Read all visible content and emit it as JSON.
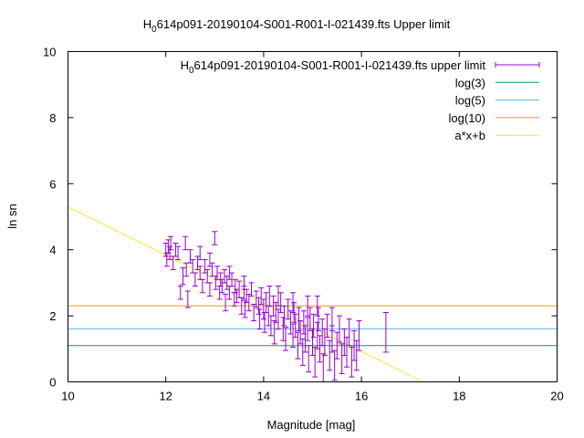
{
  "chart_data": {
    "type": "scatter",
    "title": "H",
    "title_sub": "0",
    "title_rest": "614p091-20190104-S001-R001-I-021439.fts Upper limit",
    "xlabel": "Magnitude [mag]",
    "ylabel": "ln sn",
    "xlim": [
      10,
      20
    ],
    "ylim": [
      0,
      10
    ],
    "xticks": [
      "10",
      "12",
      "14",
      "16",
      "18",
      "20"
    ],
    "yticks": [
      "0",
      "2",
      "4",
      "6",
      "8",
      "10"
    ],
    "grid": false,
    "legend_position": "top-right",
    "legend": [
      {
        "label": "H",
        "sub": "0",
        "rest": "614p091-20190104-S001-R001-I-021439.fts upper limit",
        "kind": "errorbars",
        "color": "#9400d3"
      },
      {
        "label": "log(3)",
        "kind": "line",
        "color": "#009e73"
      },
      {
        "label": "log(5)",
        "kind": "line",
        "color": "#56b4e9"
      },
      {
        "label": "log(10)",
        "kind": "line",
        "color": "#e69f00"
      },
      {
        "label": "a*x+b",
        "kind": "line",
        "color": "#f0e442"
      }
    ],
    "hlines": [
      {
        "name": "log(3)",
        "y": 1.0986,
        "color": "#009e73"
      },
      {
        "name": "log(5)",
        "y": 1.6094,
        "color": "#56b4e9"
      },
      {
        "name": "log(10)",
        "y": 2.3026,
        "color": "#e69f00"
      }
    ],
    "fit": {
      "name": "a*x+b",
      "a": -0.73,
      "b": 12.6,
      "color": "#f0e442"
    },
    "series": [
      {
        "name": "upper limit",
        "color": "#9400d3",
        "points": [
          [
            12.0,
            4.0,
            0.2
          ],
          [
            12.02,
            3.7,
            0.2
          ],
          [
            12.05,
            4.1,
            0.2
          ],
          [
            12.08,
            3.9,
            0.2
          ],
          [
            12.1,
            4.2,
            0.2
          ],
          [
            12.15,
            3.6,
            0.2
          ],
          [
            12.2,
            4.0,
            0.2
          ],
          [
            12.25,
            3.9,
            0.2
          ],
          [
            12.3,
            2.7,
            0.2
          ],
          [
            12.35,
            3.2,
            0.25
          ],
          [
            12.4,
            4.2,
            0.2
          ],
          [
            12.42,
            3.4,
            0.2
          ],
          [
            12.45,
            2.5,
            0.25
          ],
          [
            12.5,
            3.8,
            0.2
          ],
          [
            12.55,
            3.5,
            0.2
          ],
          [
            12.6,
            3.1,
            0.2
          ],
          [
            12.65,
            3.6,
            0.2
          ],
          [
            12.7,
            3.3,
            0.2
          ],
          [
            12.75,
            2.9,
            0.2
          ],
          [
            12.8,
            3.5,
            0.2
          ],
          [
            12.85,
            3.2,
            0.2
          ],
          [
            12.9,
            2.8,
            0.2
          ],
          [
            12.95,
            3.4,
            0.2
          ],
          [
            13.0,
            4.35,
            0.2
          ],
          [
            13.02,
            3.0,
            0.2
          ],
          [
            13.05,
            3.3,
            0.2
          ],
          [
            13.1,
            2.7,
            0.2
          ],
          [
            13.12,
            3.1,
            0.2
          ],
          [
            13.15,
            2.9,
            0.2
          ],
          [
            13.2,
            3.2,
            0.2
          ],
          [
            13.22,
            2.4,
            0.25
          ],
          [
            13.25,
            3.0,
            0.2
          ],
          [
            13.3,
            2.7,
            0.2
          ],
          [
            13.35,
            3.1,
            0.2
          ],
          [
            13.4,
            2.5,
            0.2
          ],
          [
            13.42,
            2.9,
            0.2
          ],
          [
            13.45,
            2.6,
            0.2
          ],
          [
            13.5,
            2.8,
            0.25
          ],
          [
            13.55,
            2.3,
            0.25
          ],
          [
            13.6,
            2.7,
            0.2
          ],
          [
            13.62,
            2.2,
            0.25
          ],
          [
            13.65,
            2.6,
            0.2
          ],
          [
            13.7,
            2.4,
            0.25
          ],
          [
            13.75,
            2.8,
            0.2
          ],
          [
            13.8,
            2.1,
            0.25
          ],
          [
            13.85,
            2.5,
            0.25
          ],
          [
            13.9,
            2.3,
            0.25
          ],
          [
            13.92,
            1.9,
            0.3
          ],
          [
            13.95,
            2.6,
            0.25
          ],
          [
            14.0,
            2.2,
            0.3
          ],
          [
            14.02,
            1.8,
            0.3
          ],
          [
            14.05,
            2.4,
            0.3
          ],
          [
            14.1,
            2.0,
            0.3
          ],
          [
            14.12,
            2.6,
            0.3
          ],
          [
            14.15,
            1.7,
            0.3
          ],
          [
            14.2,
            2.3,
            0.3
          ],
          [
            14.22,
            1.5,
            0.35
          ],
          [
            14.25,
            2.1,
            0.3
          ],
          [
            14.3,
            1.9,
            0.3
          ],
          [
            14.35,
            2.4,
            0.3
          ],
          [
            14.4,
            1.6,
            0.35
          ],
          [
            14.42,
            2.0,
            0.3
          ],
          [
            14.45,
            1.3,
            0.35
          ],
          [
            14.5,
            2.2,
            0.3
          ],
          [
            14.55,
            1.8,
            0.35
          ],
          [
            14.6,
            1.4,
            0.35
          ],
          [
            14.62,
            2.1,
            0.3
          ],
          [
            14.65,
            1.7,
            0.35
          ],
          [
            14.7,
            1.1,
            0.4
          ],
          [
            14.72,
            1.9,
            0.35
          ],
          [
            14.75,
            1.5,
            0.35
          ],
          [
            14.8,
            0.9,
            0.4
          ],
          [
            14.82,
            1.8,
            0.35
          ],
          [
            14.85,
            1.3,
            0.4
          ],
          [
            14.9,
            1.6,
            0.35
          ],
          [
            14.92,
            0.7,
            0.4
          ],
          [
            14.95,
            1.9,
            0.35
          ],
          [
            15.0,
            1.2,
            0.4
          ],
          [
            15.02,
            1.7,
            0.35
          ],
          [
            15.05,
            0.6,
            0.45
          ],
          [
            15.1,
            1.4,
            0.4
          ],
          [
            15.12,
            1.9,
            0.35
          ],
          [
            15.15,
            1.0,
            0.4
          ],
          [
            15.2,
            1.5,
            0.4
          ],
          [
            15.22,
            0.4,
            0.45
          ],
          [
            15.25,
            1.2,
            0.4
          ],
          [
            15.3,
            1.7,
            0.35
          ],
          [
            15.35,
            0.8,
            0.45
          ],
          [
            15.4,
            1.3,
            0.4
          ],
          [
            15.45,
            0.5,
            0.45
          ],
          [
            15.5,
            1.1,
            0.4
          ],
          [
            15.55,
            1.6,
            0.4
          ],
          [
            15.6,
            0.7,
            0.45
          ],
          [
            15.65,
            1.2,
            0.4
          ],
          [
            15.7,
            0.9,
            0.45
          ],
          [
            15.75,
            1.5,
            0.4
          ],
          [
            15.8,
            0.6,
            0.45
          ],
          [
            15.85,
            1.1,
            0.45
          ],
          [
            15.9,
            0.8,
            0.45
          ],
          [
            15.95,
            1.4,
            0.45
          ],
          [
            16.5,
            1.5,
            0.6
          ],
          [
            14.6,
            2.4,
            0.3
          ],
          [
            14.9,
            2.3,
            0.3
          ],
          [
            15.1,
            2.3,
            0.3
          ],
          [
            13.3,
            3.3,
            0.2
          ],
          [
            13.6,
            3.0,
            0.2
          ],
          [
            12.9,
            3.7,
            0.2
          ],
          [
            12.7,
            3.9,
            0.2
          ],
          [
            14.3,
            2.6,
            0.3
          ],
          [
            15.4,
            1.9,
            0.35
          ]
        ]
      }
    ]
  }
}
